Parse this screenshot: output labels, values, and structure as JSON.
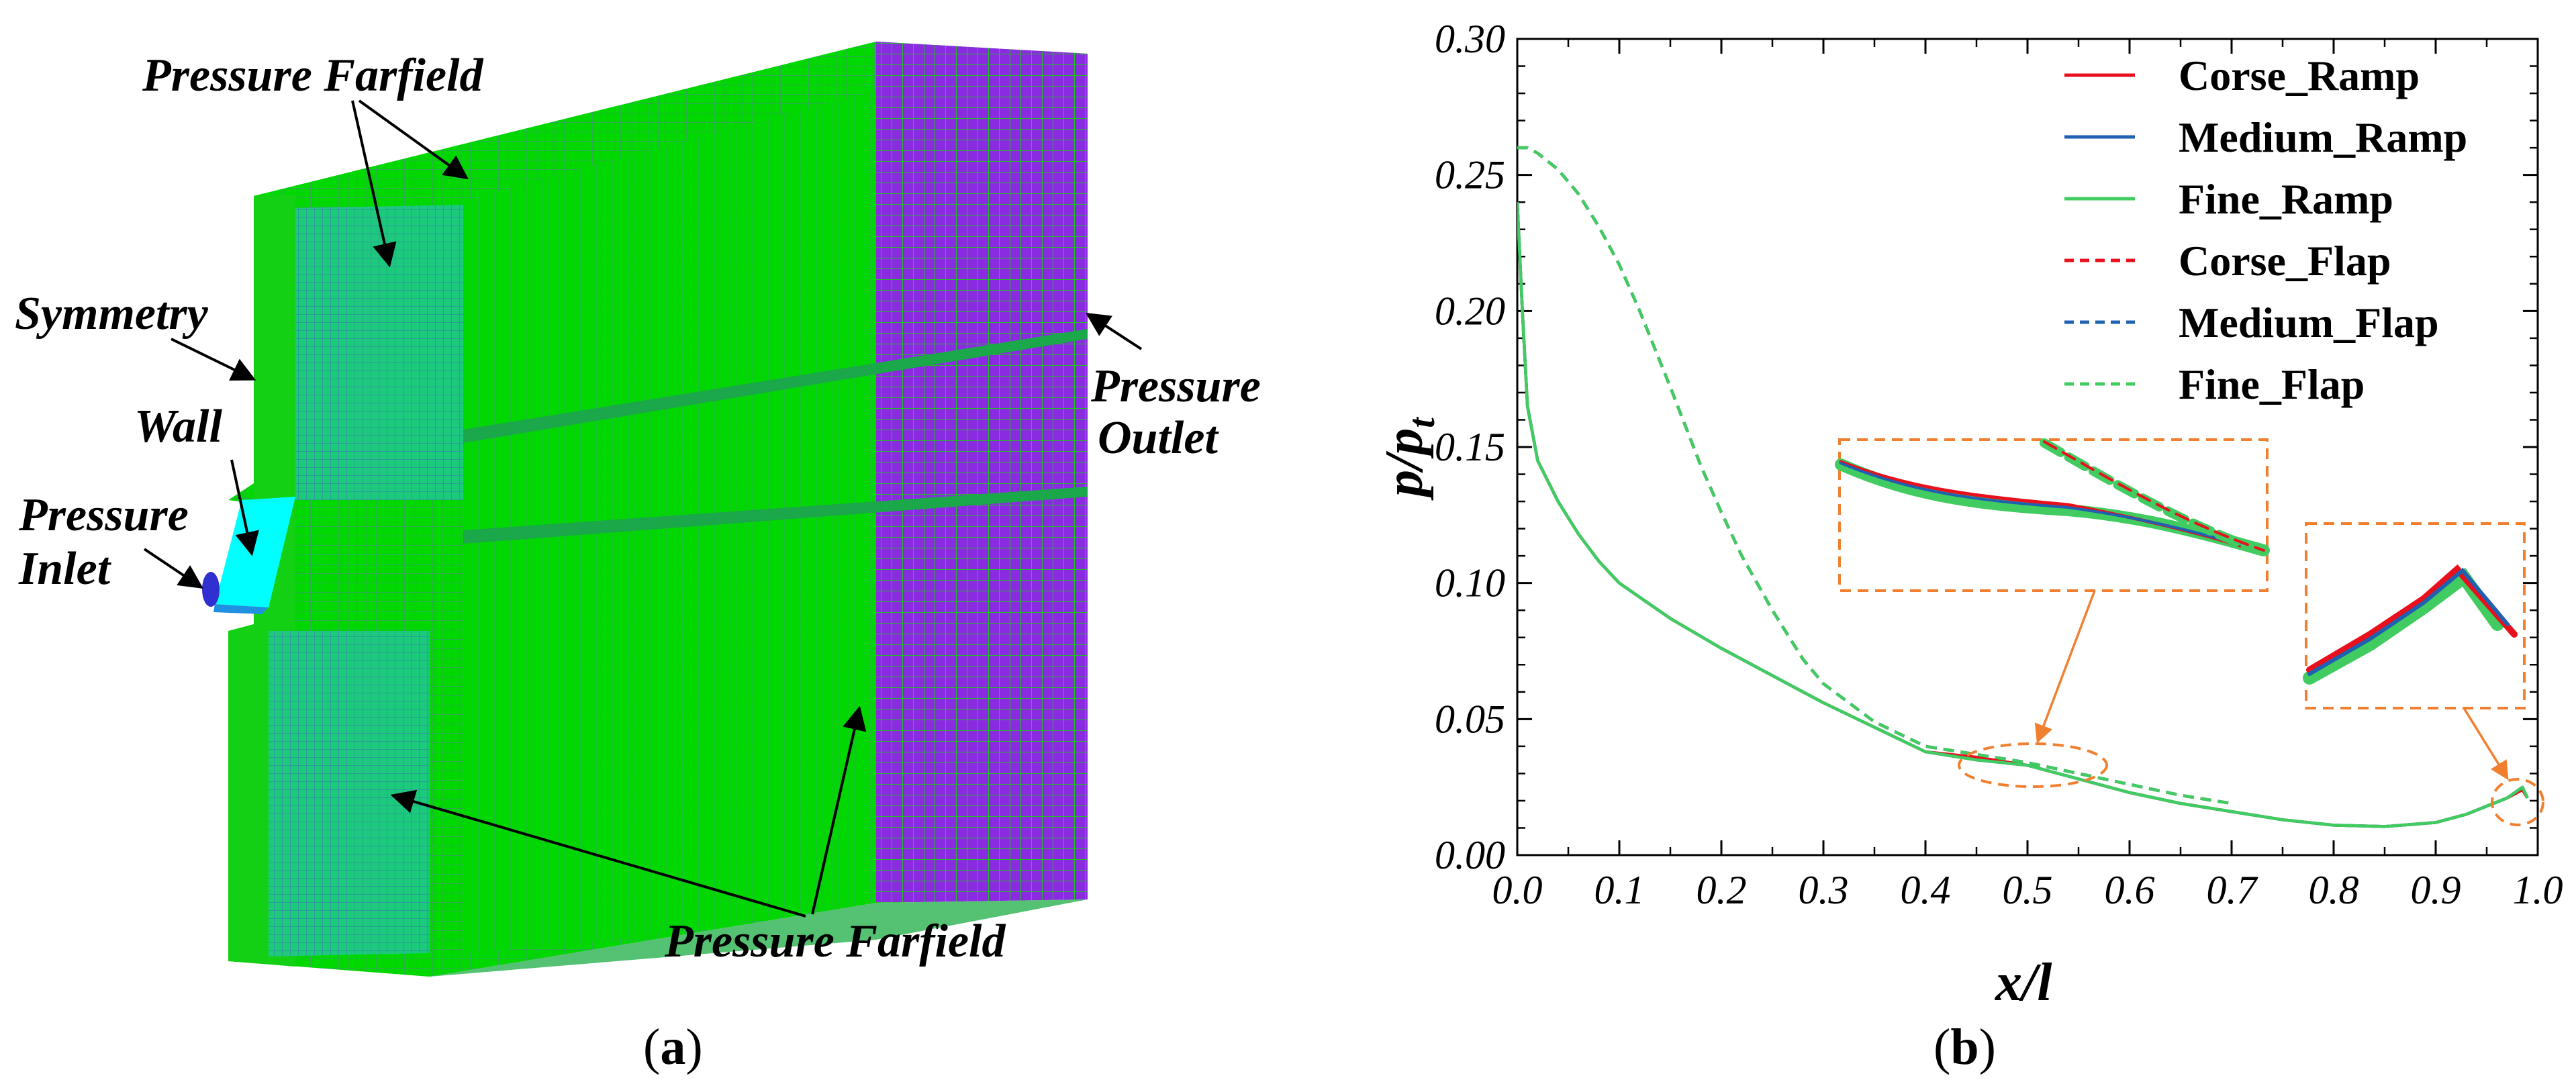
{
  "panel_a": {
    "labels": {
      "farfield_top": "Pressure Farfield",
      "symmetry": "Symmetry",
      "wall": "Wall",
      "inlet_line1": "Pressure",
      "inlet_line2": "Inlet",
      "outlet_line1": "Pressure",
      "outlet_line2": "Outlet",
      "farfield_bottom": "Pressure Farfield"
    },
    "colors": {
      "mesh_green": "#00d800",
      "mesh_purple": "#8a2be2",
      "mesh_blue": "#1e90ff",
      "inlet_cyan": "#00ffff",
      "inlet_dark": "#3030d0"
    },
    "caption": {
      "open": "(",
      "letter": "a",
      "close": ")"
    }
  },
  "chart_data": {
    "type": "line",
    "xlabel": "x/l",
    "ylabel_main": "p/p",
    "ylabel_sub": "t",
    "xlim": [
      0.0,
      1.0
    ],
    "ylim": [
      0.0,
      0.3
    ],
    "xticks": [
      "0.0",
      "0.1",
      "0.2",
      "0.3",
      "0.4",
      "0.5",
      "0.6",
      "0.7",
      "0.8",
      "0.9",
      "1.0"
    ],
    "yticks": [
      "0.00",
      "0.05",
      "0.10",
      "0.15",
      "0.20",
      "0.25",
      "0.30"
    ],
    "legend": "top-right",
    "series": [
      {
        "name": "Corse_Ramp",
        "color": "#e8101c",
        "dash": "solid",
        "x": [
          0.0,
          0.005,
          0.01,
          0.02,
          0.04,
          0.06,
          0.08,
          0.1,
          0.15,
          0.2,
          0.25,
          0.3,
          0.35,
          0.4,
          0.45,
          0.5,
          0.55,
          0.6,
          0.65,
          0.7,
          0.75,
          0.8,
          0.85,
          0.9,
          0.93,
          0.95,
          0.97,
          0.985,
          0.99
        ],
        "y": [
          0.24,
          0.2,
          0.165,
          0.145,
          0.13,
          0.118,
          0.108,
          0.1,
          0.087,
          0.076,
          0.066,
          0.056,
          0.047,
          0.038,
          0.036,
          0.033,
          0.028,
          0.023,
          0.019,
          0.016,
          0.013,
          0.011,
          0.0105,
          0.012,
          0.015,
          0.018,
          0.021,
          0.024,
          0.021
        ]
      },
      {
        "name": "Medium_Ramp",
        "color": "#2060b0",
        "dash": "solid",
        "x": [
          0.0,
          0.005,
          0.01,
          0.02,
          0.04,
          0.06,
          0.08,
          0.1,
          0.15,
          0.2,
          0.25,
          0.3,
          0.35,
          0.4,
          0.45,
          0.5,
          0.55,
          0.6,
          0.65,
          0.7,
          0.75,
          0.8,
          0.85,
          0.9,
          0.93,
          0.95,
          0.97,
          0.985,
          0.99
        ],
        "y": [
          0.24,
          0.2,
          0.165,
          0.145,
          0.13,
          0.118,
          0.108,
          0.1,
          0.087,
          0.076,
          0.066,
          0.056,
          0.047,
          0.038,
          0.035,
          0.033,
          0.028,
          0.023,
          0.019,
          0.016,
          0.013,
          0.011,
          0.0105,
          0.012,
          0.015,
          0.018,
          0.021,
          0.025,
          0.021
        ]
      },
      {
        "name": "Fine_Ramp",
        "color": "#40cc60",
        "dash": "solid",
        "x": [
          0.0,
          0.005,
          0.01,
          0.02,
          0.04,
          0.06,
          0.08,
          0.1,
          0.15,
          0.2,
          0.25,
          0.3,
          0.35,
          0.4,
          0.45,
          0.5,
          0.55,
          0.6,
          0.65,
          0.7,
          0.75,
          0.8,
          0.85,
          0.9,
          0.93,
          0.95,
          0.97,
          0.985,
          0.99
        ],
        "y": [
          0.24,
          0.2,
          0.165,
          0.145,
          0.13,
          0.118,
          0.108,
          0.1,
          0.087,
          0.076,
          0.066,
          0.056,
          0.047,
          0.038,
          0.035,
          0.033,
          0.028,
          0.023,
          0.019,
          0.016,
          0.013,
          0.011,
          0.0105,
          0.012,
          0.015,
          0.018,
          0.021,
          0.025,
          0.021
        ]
      },
      {
        "name": "Corse_Flap",
        "color": "#e8101c",
        "dash": "dashed",
        "x": [
          0.0,
          0.01,
          0.02,
          0.04,
          0.06,
          0.08,
          0.1,
          0.12,
          0.15,
          0.18,
          0.2,
          0.22,
          0.25,
          0.28,
          0.3,
          0.35,
          0.4,
          0.45,
          0.5,
          0.55,
          0.6,
          0.65,
          0.7
        ],
        "y": [
          0.26,
          0.26,
          0.258,
          0.252,
          0.243,
          0.231,
          0.217,
          0.2,
          0.172,
          0.143,
          0.126,
          0.11,
          0.09,
          0.072,
          0.063,
          0.049,
          0.04,
          0.037,
          0.034,
          0.03,
          0.026,
          0.022,
          0.019
        ]
      },
      {
        "name": "Medium_Flap",
        "color": "#2060b0",
        "dash": "dashed",
        "x": [
          0.0,
          0.01,
          0.02,
          0.04,
          0.06,
          0.08,
          0.1,
          0.12,
          0.15,
          0.18,
          0.2,
          0.22,
          0.25,
          0.28,
          0.3,
          0.35,
          0.4,
          0.45,
          0.5,
          0.55,
          0.6,
          0.65,
          0.7
        ],
        "y": [
          0.26,
          0.26,
          0.258,
          0.252,
          0.243,
          0.231,
          0.217,
          0.2,
          0.172,
          0.143,
          0.126,
          0.11,
          0.09,
          0.072,
          0.063,
          0.049,
          0.04,
          0.037,
          0.034,
          0.03,
          0.026,
          0.022,
          0.019
        ]
      },
      {
        "name": "Fine_Flap",
        "color": "#40cc60",
        "dash": "dashed",
        "x": [
          0.0,
          0.01,
          0.02,
          0.04,
          0.06,
          0.08,
          0.1,
          0.12,
          0.15,
          0.18,
          0.2,
          0.22,
          0.25,
          0.28,
          0.3,
          0.35,
          0.4,
          0.45,
          0.5,
          0.55,
          0.6,
          0.65,
          0.7
        ],
        "y": [
          0.26,
          0.26,
          0.258,
          0.252,
          0.243,
          0.231,
          0.217,
          0.2,
          0.172,
          0.143,
          0.126,
          0.11,
          0.09,
          0.072,
          0.063,
          0.049,
          0.04,
          0.037,
          0.034,
          0.03,
          0.026,
          0.022,
          0.019
        ]
      }
    ],
    "annotation_color": "#f08030",
    "caption": {
      "open": "(",
      "letter": "b",
      "close": ")"
    }
  }
}
